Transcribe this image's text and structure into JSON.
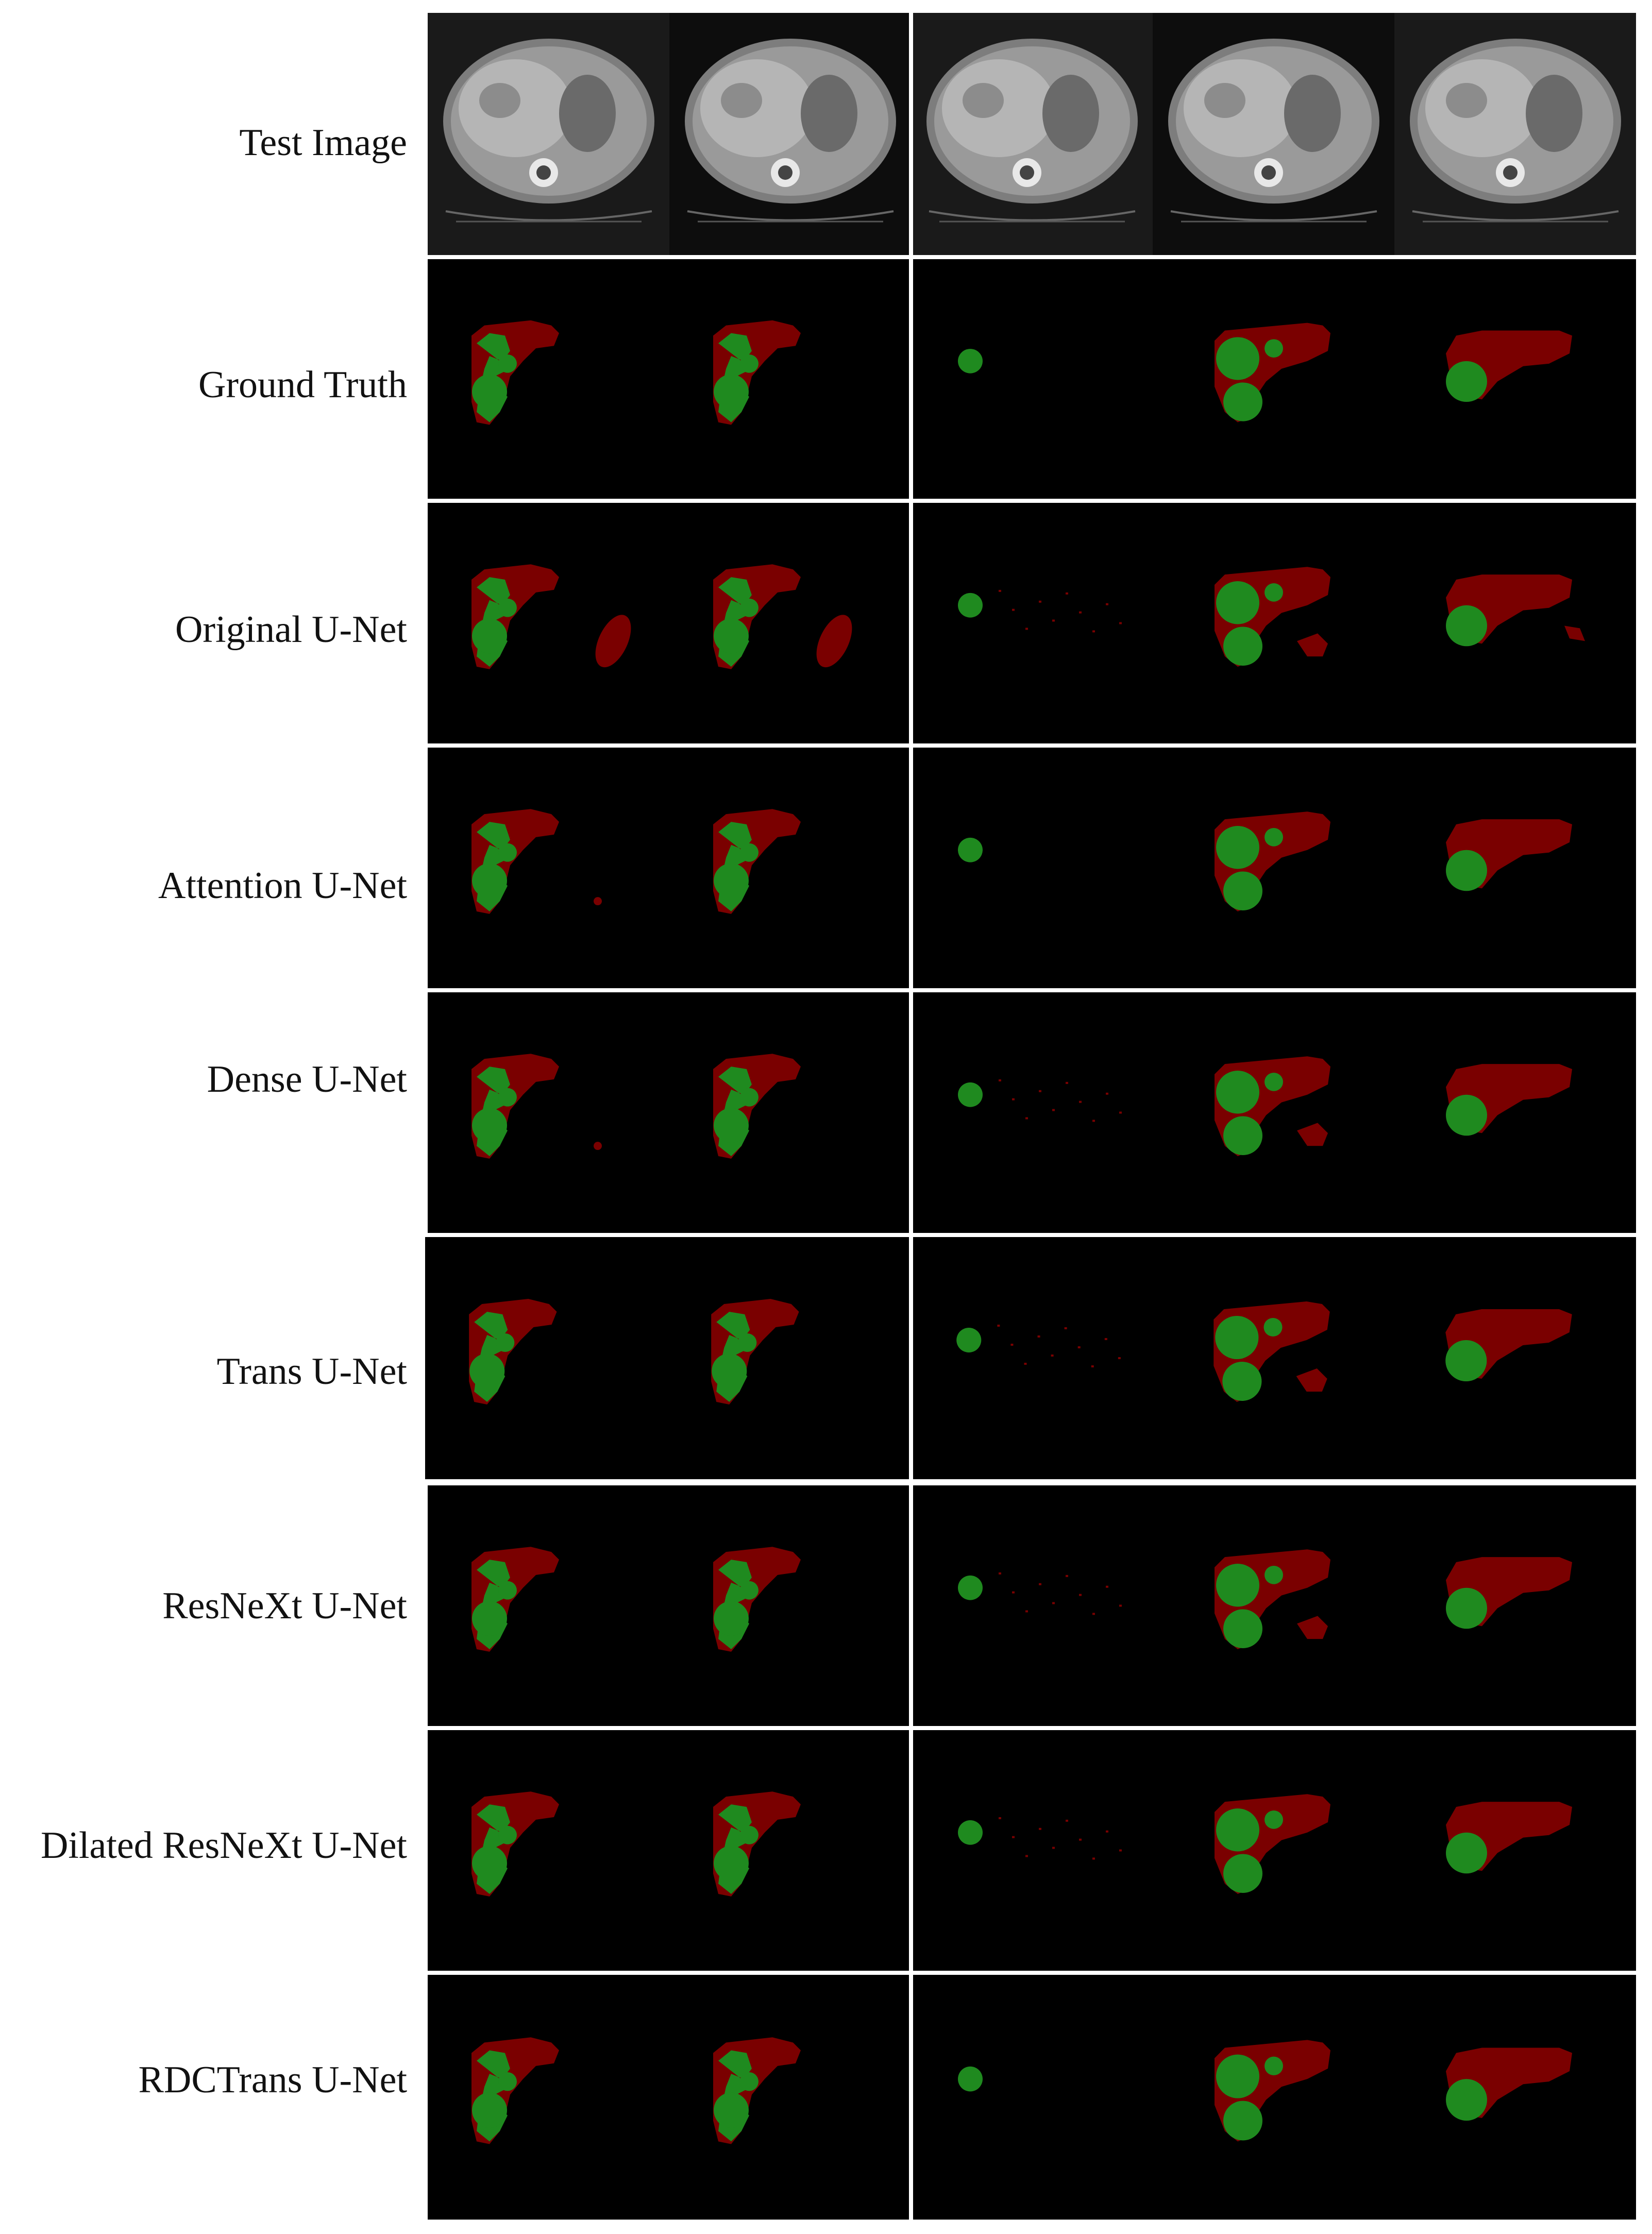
{
  "figure": {
    "rows": [
      {
        "label": "Test Image",
        "kind": "ct"
      },
      {
        "label": "Ground Truth",
        "kind": "gt"
      },
      {
        "label": "Original U-Net",
        "kind": "original"
      },
      {
        "label": "Attention U-Net",
        "kind": "attention"
      },
      {
        "label": "Dense U-Net",
        "kind": "dense"
      },
      {
        "label": "Trans U-Net",
        "kind": "trans"
      },
      {
        "label": "ResNeXt U-Net",
        "kind": "resnext"
      },
      {
        "label": "Dilated ResNeXt U-Net",
        "kind": "dilated"
      },
      {
        "label": "RDCTrans U-Net",
        "kind": "rdctrans"
      }
    ],
    "colors": {
      "liver": "#7a0000",
      "tumor": "#1f8a1f",
      "background": "#000000",
      "separator": "#ffffff"
    }
  }
}
